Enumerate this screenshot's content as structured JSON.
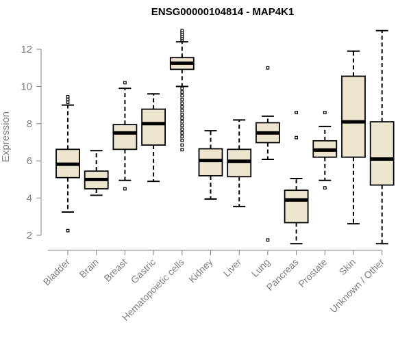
{
  "chart_data": {
    "type": "boxplot",
    "title": "ENSG00000104814 - MAP4K1",
    "xlabel": "",
    "ylabel": "Expression",
    "ylim": [
      1.0,
      13.4
    ],
    "yticks": [
      2,
      4,
      6,
      8,
      10,
      12
    ],
    "grid": false,
    "colors": {
      "box_fill": "#ede6cf",
      "stroke": "#000000",
      "axis": "#808080"
    },
    "categories": [
      "Bladder",
      "Brain",
      "Breast",
      "Gastric",
      "Hematopoietic cells",
      "Kidney",
      "Liver",
      "Lung",
      "Pancreas",
      "Prostate",
      "Skin",
      "Unknown / Other"
    ],
    "boxes": [
      {
        "label": "Bladder",
        "whisker_low": 3.25,
        "q1": 5.1,
        "median": 5.82,
        "q3": 6.62,
        "whisker_high": 9.0,
        "outliers": [
          2.25,
          9.15,
          9.3,
          9.45
        ]
      },
      {
        "label": "Brain",
        "whisker_low": 4.15,
        "q1": 4.5,
        "median": 5.0,
        "q3": 5.45,
        "whisker_high": 6.55,
        "outliers": []
      },
      {
        "label": "Breast",
        "whisker_low": 4.95,
        "q1": 6.62,
        "median": 7.5,
        "q3": 7.95,
        "whisker_high": 9.9,
        "outliers": [
          4.5,
          10.2
        ]
      },
      {
        "label": "Gastric",
        "whisker_low": 4.9,
        "q1": 6.85,
        "median": 8.0,
        "q3": 8.78,
        "whisker_high": 9.6,
        "outliers": []
      },
      {
        "label": "Hematopoietic cells",
        "whisker_low": 10.0,
        "q1": 10.92,
        "median": 11.25,
        "q3": 11.55,
        "whisker_high": 12.4,
        "outliers": [
          6.6,
          6.85,
          7.1,
          7.3,
          7.5,
          7.7,
          7.9,
          8.1,
          8.3,
          8.5,
          8.7,
          8.9,
          9.1,
          9.3,
          9.5,
          9.7,
          9.9,
          12.5,
          12.6,
          12.7,
          12.8,
          12.9,
          13.0
        ]
      },
      {
        "label": "Kidney",
        "whisker_low": 3.95,
        "q1": 5.2,
        "median": 6.02,
        "q3": 6.65,
        "whisker_high": 7.62,
        "outliers": []
      },
      {
        "label": "Liver",
        "whisker_low": 3.55,
        "q1": 5.15,
        "median": 5.98,
        "q3": 6.62,
        "whisker_high": 8.2,
        "outliers": []
      },
      {
        "label": "Lung",
        "whisker_low": 6.08,
        "q1": 6.98,
        "median": 7.5,
        "q3": 8.05,
        "whisker_high": 8.4,
        "outliers": [
          1.75,
          11.0
        ]
      },
      {
        "label": "Pancreas",
        "whisker_low": 1.55,
        "q1": 2.68,
        "median": 3.9,
        "q3": 4.42,
        "whisker_high": 5.05,
        "outliers": [
          7.25,
          8.6
        ]
      },
      {
        "label": "Prostate",
        "whisker_low": 4.95,
        "q1": 6.2,
        "median": 6.58,
        "q3": 7.08,
        "whisker_high": 7.85,
        "outliers": [
          4.55,
          8.6
        ]
      },
      {
        "label": "Skin",
        "whisker_low": 2.62,
        "q1": 6.2,
        "median": 8.1,
        "q3": 10.55,
        "whisker_high": 11.9,
        "outliers": []
      },
      {
        "label": "Unknown / Other",
        "whisker_low": 1.55,
        "q1": 4.7,
        "median": 6.1,
        "q3": 8.1,
        "whisker_high": 13.0,
        "outliers": []
      }
    ]
  }
}
